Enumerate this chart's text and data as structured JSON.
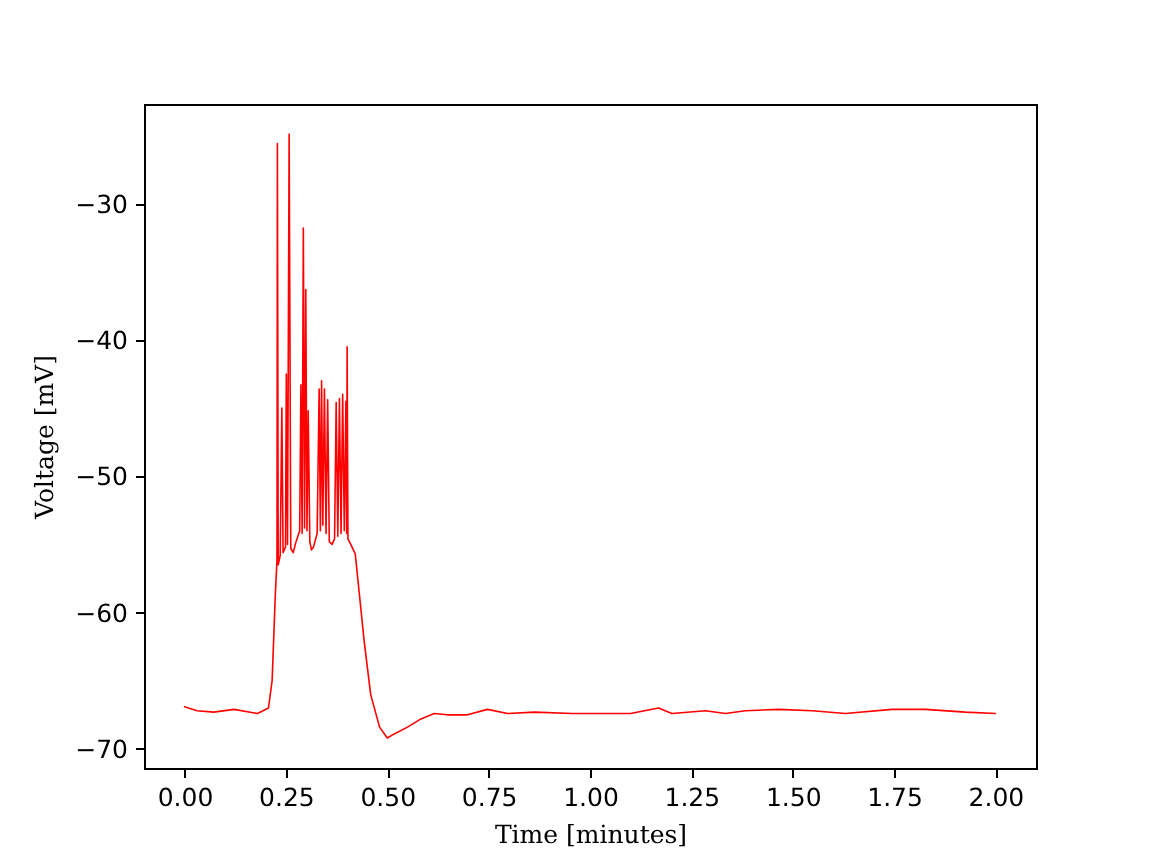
{
  "chart_data": {
    "type": "line",
    "xlabel": "Time [minutes]",
    "ylabel": "Voltage [mV]",
    "x": [
      0.0,
      0.031,
      0.072,
      0.122,
      0.18,
      0.207,
      0.216,
      0.224,
      0.228,
      0.229,
      0.231,
      0.236,
      0.24,
      0.243,
      0.249,
      0.251,
      0.254,
      0.258,
      0.262,
      0.268,
      0.275,
      0.284,
      0.287,
      0.29,
      0.293,
      0.296,
      0.299,
      0.302,
      0.305,
      0.309,
      0.313,
      0.318,
      0.327,
      0.332,
      0.335,
      0.338,
      0.341,
      0.345,
      0.349,
      0.353,
      0.357,
      0.364,
      0.37,
      0.374,
      0.378,
      0.382,
      0.386,
      0.39,
      0.394,
      0.398,
      0.4,
      0.401,
      0.403,
      0.41,
      0.421,
      0.431,
      0.443,
      0.459,
      0.481,
      0.5,
      0.517,
      0.55,
      0.583,
      0.616,
      0.648,
      0.698,
      0.747,
      0.797,
      0.863,
      0.956,
      1.038,
      1.1,
      1.169,
      1.202,
      1.285,
      1.334,
      1.383,
      1.465,
      1.548,
      1.63,
      1.745,
      1.827,
      1.926,
      2.0
    ],
    "series": [
      {
        "color": "#ff0000",
        "values": [
          -66.9,
          -67.2,
          -67.3,
          -67.1,
          -67.4,
          -67.0,
          -65.0,
          -58.6,
          -56.2,
          -25.6,
          -56.5,
          -55.8,
          -45.0,
          -55.6,
          -55.2,
          -42.5,
          -55.0,
          -24.9,
          -55.3,
          -55.6,
          -54.8,
          -54.0,
          -43.3,
          -54.2,
          -31.8,
          -53.8,
          -36.3,
          -54.0,
          -45.2,
          -54.8,
          -55.4,
          -55.2,
          -54.2,
          -43.6,
          -54.0,
          -43.0,
          -53.6,
          -43.6,
          -54.2,
          -44.4,
          -54.8,
          -55.0,
          -54.6,
          -44.6,
          -54.4,
          -44.3,
          -54.2,
          -44.0,
          -54.0,
          -44.5,
          -54.2,
          -40.5,
          -54.6,
          -55.0,
          -55.7,
          -58.6,
          -62.1,
          -66.0,
          -68.4,
          -69.2,
          -68.9,
          -68.4,
          -67.8,
          -67.4,
          -67.5,
          -67.5,
          -67.1,
          -67.4,
          -67.3,
          -67.4,
          -67.4,
          -67.4,
          -67.0,
          -67.4,
          -67.2,
          -67.4,
          -67.2,
          -67.1,
          -67.2,
          -67.4,
          -67.1,
          -67.1,
          -67.3,
          -67.4
        ]
      }
    ],
    "xlim": [
      -0.1,
      2.1
    ],
    "ylim": [
      -71.4,
      -22.7
    ],
    "xticks": [
      {
        "value": 0,
        "label": "0.00"
      },
      {
        "value": 0.25,
        "label": "0.25"
      },
      {
        "value": 0.5,
        "label": "0.50"
      },
      {
        "value": 0.75,
        "label": "0.75"
      },
      {
        "value": 1,
        "label": "1.00"
      },
      {
        "value": 1.25,
        "label": "1.25"
      },
      {
        "value": 1.5,
        "label": "1.50"
      },
      {
        "value": 1.75,
        "label": "1.75"
      },
      {
        "value": 2,
        "label": "2.00"
      }
    ],
    "yticks": [
      {
        "value": -70,
        "label": "−70"
      },
      {
        "value": -60,
        "label": "−60"
      },
      {
        "value": -50,
        "label": "−50"
      },
      {
        "value": -40,
        "label": "−40"
      },
      {
        "value": -30,
        "label": "−30"
      }
    ],
    "line_style": "solid"
  }
}
